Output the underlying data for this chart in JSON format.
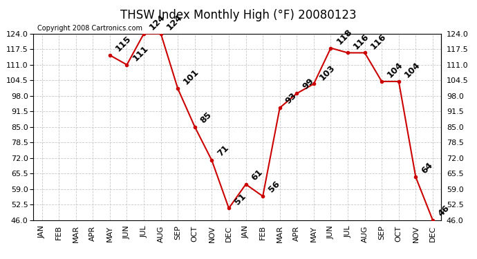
{
  "title": "THSW Index Monthly High (°F) 20080123",
  "copyright": "Copyright 2008 Cartronics.com",
  "months": [
    "JAN",
    "FEB",
    "MAR",
    "APR",
    "MAY",
    "JUN",
    "JUL",
    "AUG",
    "SEP",
    "OCT",
    "NOV",
    "DEC",
    "JAN",
    "FEB",
    "MAR",
    "APR",
    "MAY",
    "JUN",
    "JUL",
    "AUG",
    "SEP",
    "OCT",
    "NOV",
    "DEC"
  ],
  "values": [
    null,
    null,
    null,
    null,
    115,
    111,
    124,
    124,
    101,
    85,
    71,
    51,
    61,
    56,
    93,
    99,
    103,
    118,
    116,
    116,
    104,
    104,
    64,
    46
  ],
  "ylim_min": 46.0,
  "ylim_max": 124.0,
  "yticks": [
    46.0,
    52.5,
    59.0,
    65.5,
    72.0,
    78.5,
    85.0,
    91.5,
    98.0,
    104.5,
    111.0,
    117.5,
    124.0
  ],
  "ytick_labels": [
    "46.0",
    "52.5",
    "59.0",
    "65.5",
    "72.0",
    "78.5",
    "85.0",
    "91.5",
    "98.0",
    "104.5",
    "111.0",
    "117.5",
    "124.0"
  ],
  "line_color": "#cc0000",
  "marker_color": "#cc0000",
  "bg_color": "#ffffff",
  "grid_color": "#c8c8c8",
  "title_fontsize": 12,
  "copyright_fontsize": 7,
  "tick_fontsize": 8,
  "label_fontsize": 9,
  "label_fontweight": "bold"
}
